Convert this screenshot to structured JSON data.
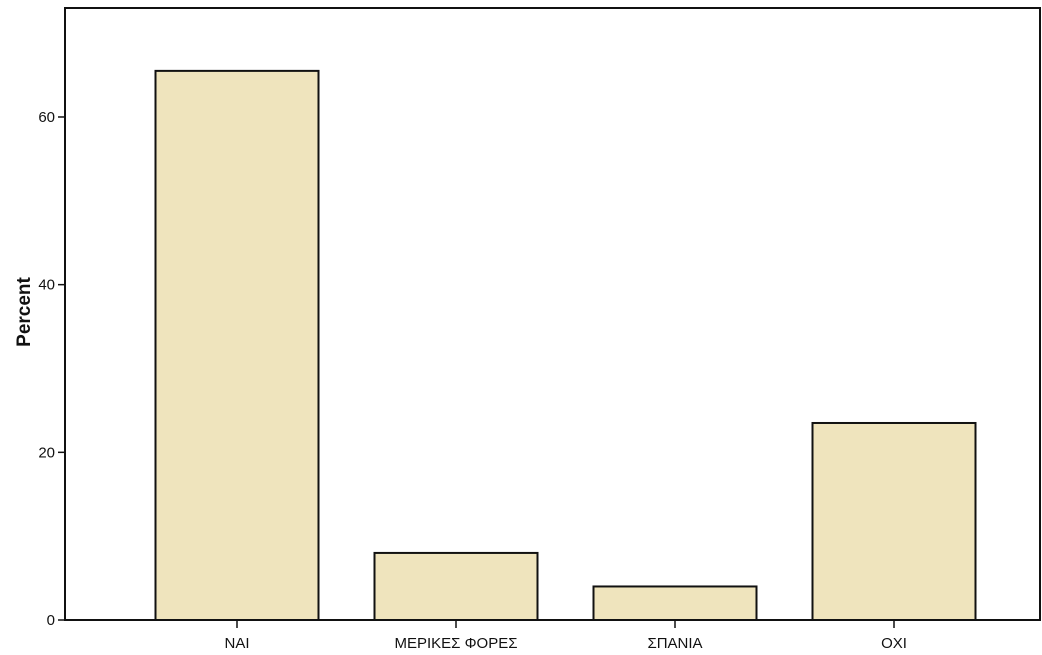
{
  "chart_data": {
    "type": "bar",
    "title": "",
    "xlabel": "",
    "ylabel": "Percent",
    "categories": [
      "ΝΑΙ",
      "ΜΕΡΙΚΕΣ ΦΟΡΕΣ",
      "ΣΠΑΝΙΑ",
      "ΟΧΙ"
    ],
    "values": [
      65.5,
      8,
      4,
      23.5
    ],
    "ylim": [
      0,
      73
    ],
    "yticks": [
      0,
      20,
      40,
      60
    ],
    "grid": false,
    "legend": "none",
    "colors": {
      "bar_fill": "#efe4bd",
      "bar_stroke": "#111111",
      "axis": "#111111",
      "background": "#ffffff"
    }
  }
}
